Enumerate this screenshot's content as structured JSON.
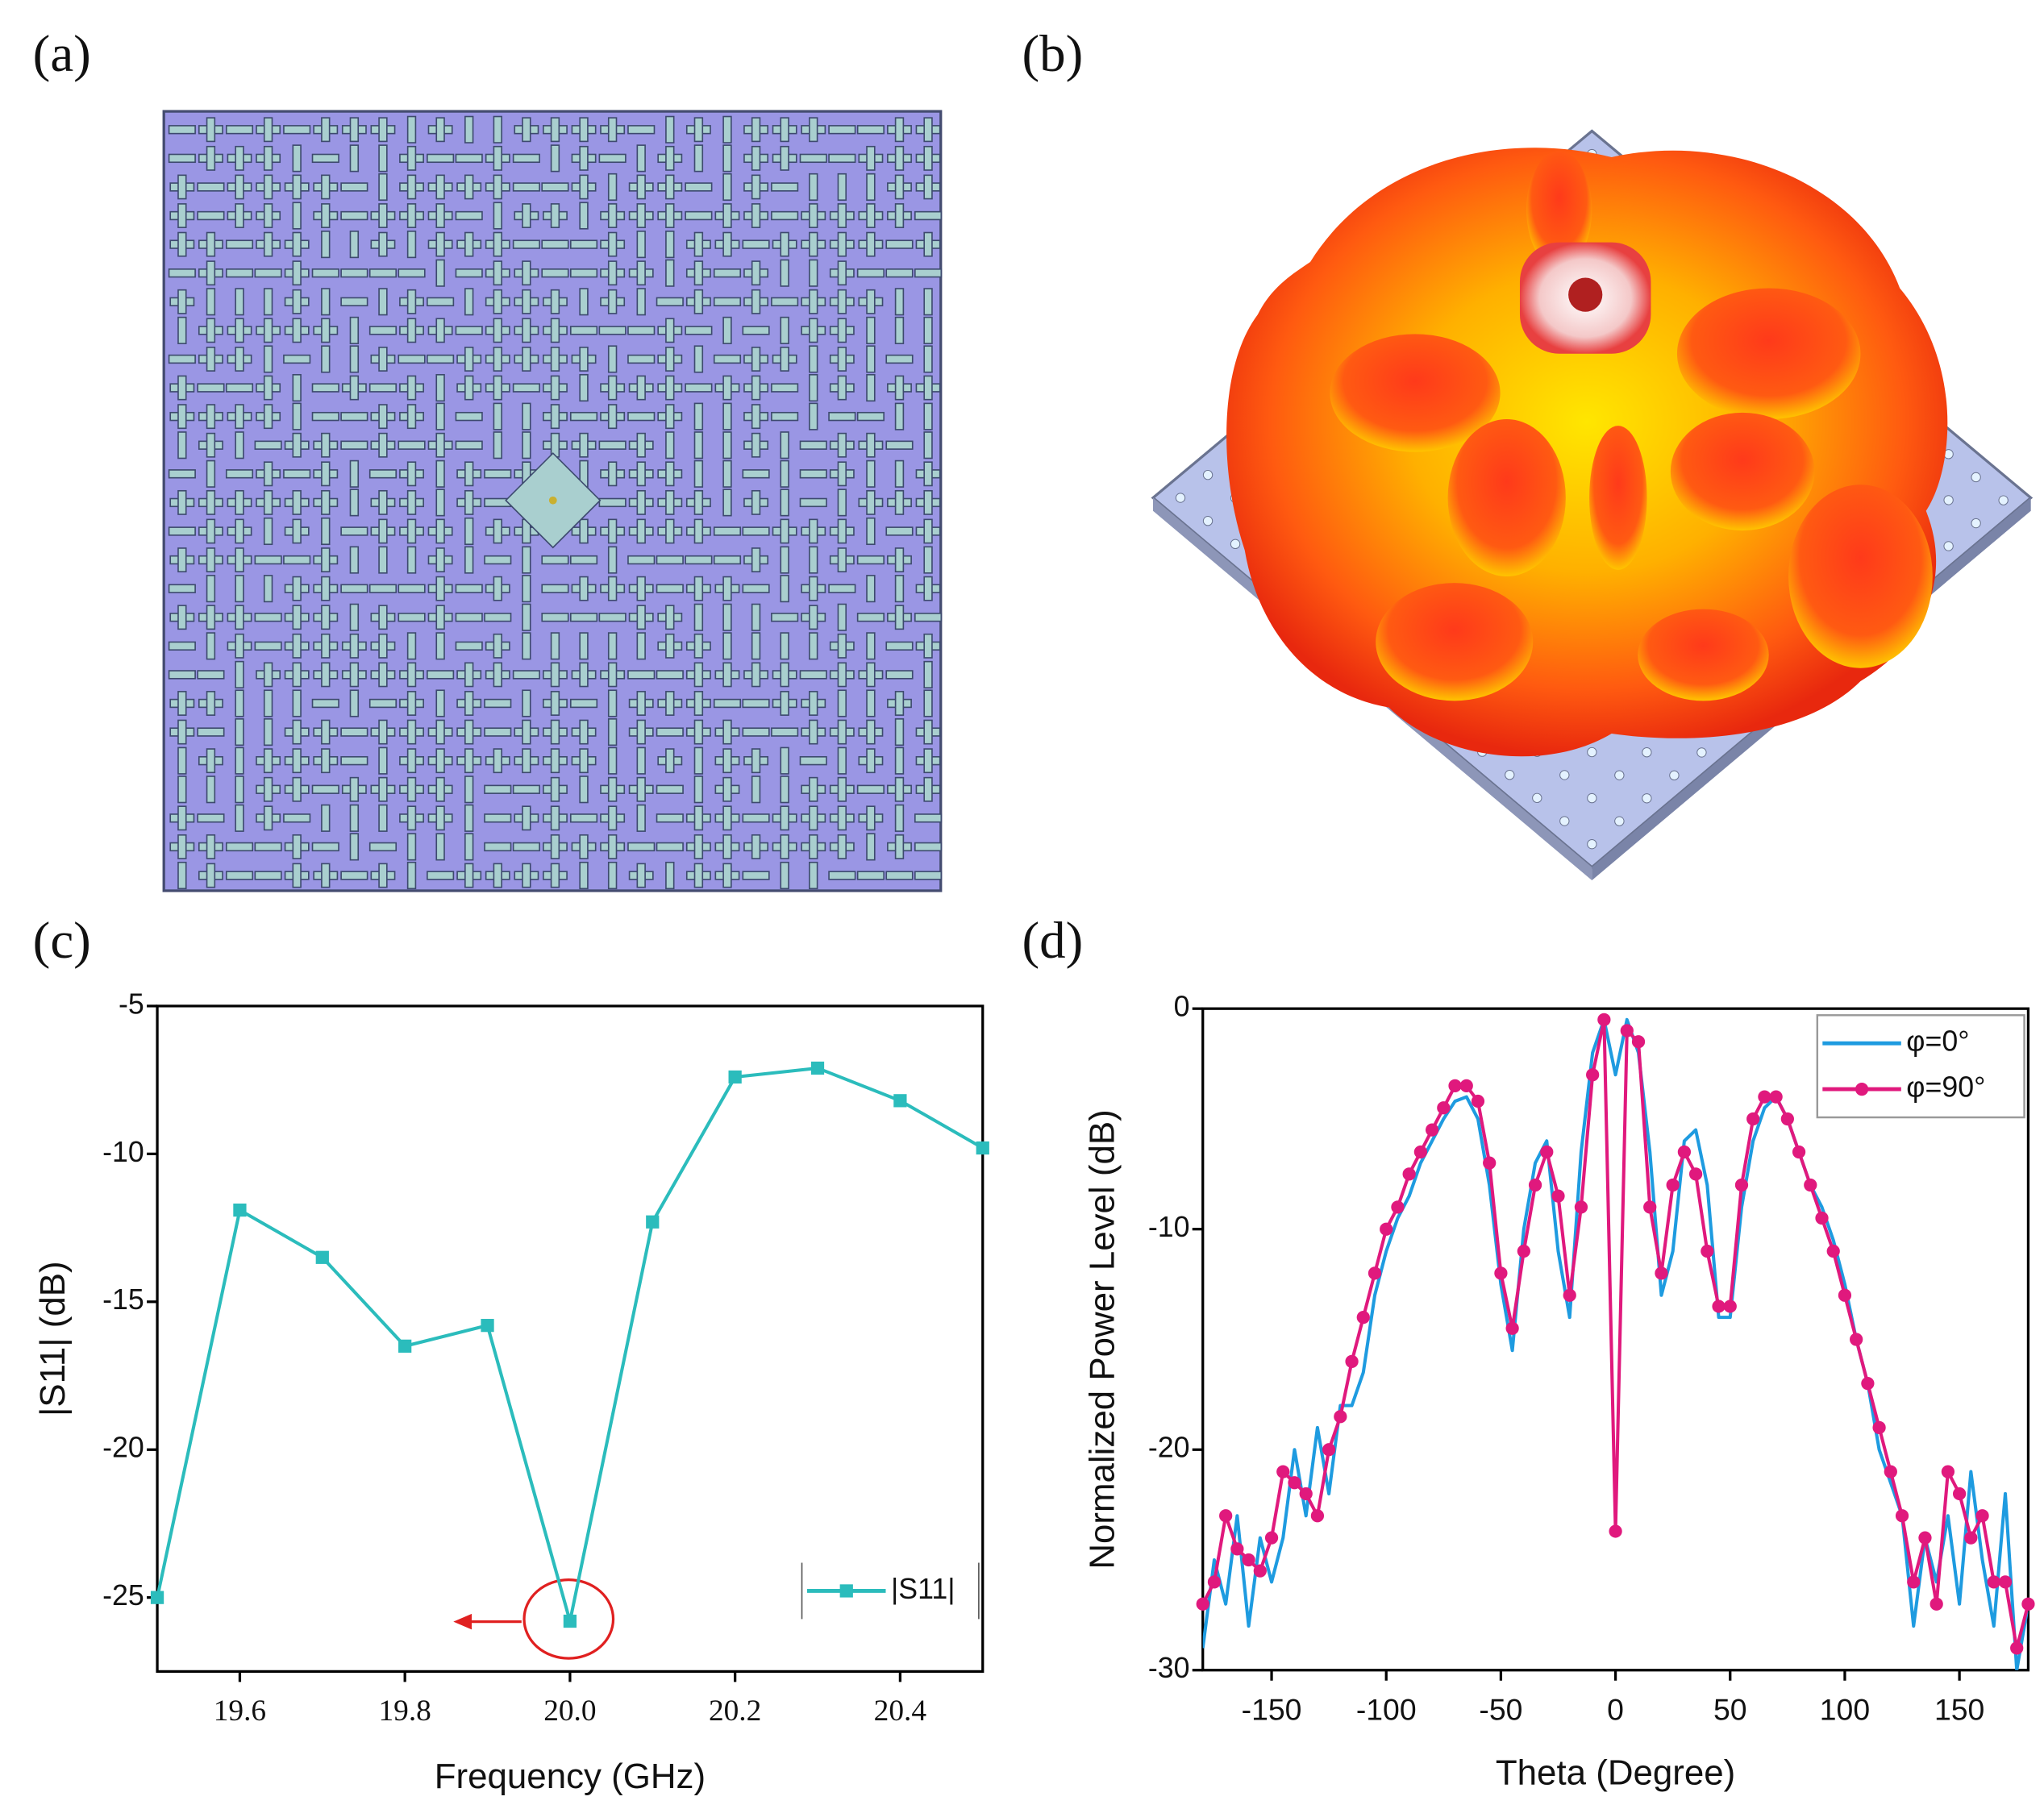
{
  "panels": [
    {
      "label": "(a)"
    },
    {
      "label": "(b)"
    }
  ],
  "chart_data": [
    {
      "type": "line",
      "title": "(c)",
      "xlabel": "Frequency (GHz)",
      "ylabel": "|S11| (dB)",
      "x": [
        19.5,
        19.6,
        19.7,
        19.8,
        19.9,
        20.0,
        20.1,
        20.2,
        20.3,
        20.4,
        20.5
      ],
      "series": [
        {
          "name": "|S11|",
          "color": "#2bbcbc",
          "marker": "square",
          "values": [
            -25.0,
            -11.9,
            -13.5,
            -16.5,
            -15.8,
            -25.8,
            -12.3,
            -7.4,
            -7.1,
            -8.2,
            -9.8
          ]
        }
      ],
      "xlim": [
        19.5,
        20.5
      ],
      "ylim": [
        -27.5,
        -5
      ],
      "xticks": [
        19.6,
        19.8,
        {
          "value": 20,
          "label": "20.0"
        },
        20.2,
        20.4
      ],
      "yticks": [
        -5,
        -10,
        -15,
        -20,
        -25
      ],
      "legend": "lower right"
    },
    {
      "type": "line",
      "title": "(d)",
      "xlabel": "Theta (Degree)",
      "ylabel": "Normalized Power Level (dB)",
      "x": [
        -180,
        -175,
        -170,
        -165,
        -160,
        -155,
        -150,
        -145,
        -140,
        -135,
        -130,
        -125,
        -120,
        -115,
        -110,
        -105,
        -100,
        -95,
        -90,
        -85,
        -80,
        -75,
        -70,
        -65,
        -60,
        -55,
        -50,
        -45,
        -40,
        -35,
        -30,
        -25,
        -20,
        -15,
        -10,
        -5,
        0,
        5,
        10,
        15,
        20,
        25,
        30,
        35,
        40,
        45,
        50,
        55,
        60,
        65,
        70,
        75,
        80,
        85,
        90,
        95,
        100,
        105,
        110,
        115,
        120,
        125,
        130,
        135,
        140,
        145,
        150,
        155,
        160,
        165,
        170,
        175,
        180
      ],
      "series": [
        {
          "name": "φ=0°",
          "color": "#1e9be0",
          "marker": "none",
          "values": [
            -29,
            -25,
            -27,
            -23,
            -28,
            -24,
            -26,
            -24,
            -20,
            -23,
            -19,
            -22,
            -18,
            -18,
            -16.5,
            -13,
            -11,
            -9.5,
            -8.5,
            -7,
            -6,
            -5,
            -4.2,
            -4,
            -5,
            -8,
            -12.5,
            -15.5,
            -10,
            -7,
            -6,
            -11,
            -14,
            -6.5,
            -2,
            -0.5,
            -3,
            -0.5,
            -2,
            -6.5,
            -13,
            -11,
            -6,
            -5.5,
            -8,
            -14,
            -14,
            -9,
            -6,
            -4.5,
            -4,
            -5,
            -6.5,
            -8,
            -9,
            -10.5,
            -12.5,
            -15,
            -17,
            -20,
            -21.5,
            -23,
            -28,
            -24,
            -26,
            -23,
            -27,
            -21,
            -25,
            -28,
            -22,
            -30,
            -27
          ]
        },
        {
          "name": "φ=90°",
          "color": "#e0197d",
          "marker": "circle",
          "values": [
            -27,
            -26,
            -23,
            -24.5,
            -25,
            -25.5,
            -24,
            -21,
            -21.5,
            -22,
            -23,
            -20,
            -18.5,
            -16,
            -14,
            -12,
            -10,
            -9,
            -7.5,
            -6.5,
            -5.5,
            -4.5,
            -3.5,
            -3.5,
            -4.2,
            -7,
            -12,
            -14.5,
            -11,
            -8,
            -6.5,
            -8.5,
            -13,
            -9,
            -3,
            -0.5,
            -23.7,
            -1,
            -1.5,
            -9,
            -12,
            -8,
            -6.5,
            -7.5,
            -11,
            -13.5,
            -13.5,
            -8,
            -5,
            -4,
            -4,
            -5,
            -6.5,
            -8,
            -9.5,
            -11,
            -13,
            -15,
            -17,
            -19,
            -21,
            -23,
            -26,
            -24,
            -27,
            -21,
            -22,
            -24,
            -23,
            -26,
            -26,
            -29,
            -27
          ]
        }
      ],
      "xlim": [
        -180,
        180
      ],
      "ylim": [
        -30,
        0
      ],
      "xticks": [
        -150,
        -100,
        -50,
        0,
        50,
        100,
        150
      ],
      "yticks": [
        0,
        -10,
        -20,
        -30
      ],
      "legend": "upper right"
    }
  ]
}
